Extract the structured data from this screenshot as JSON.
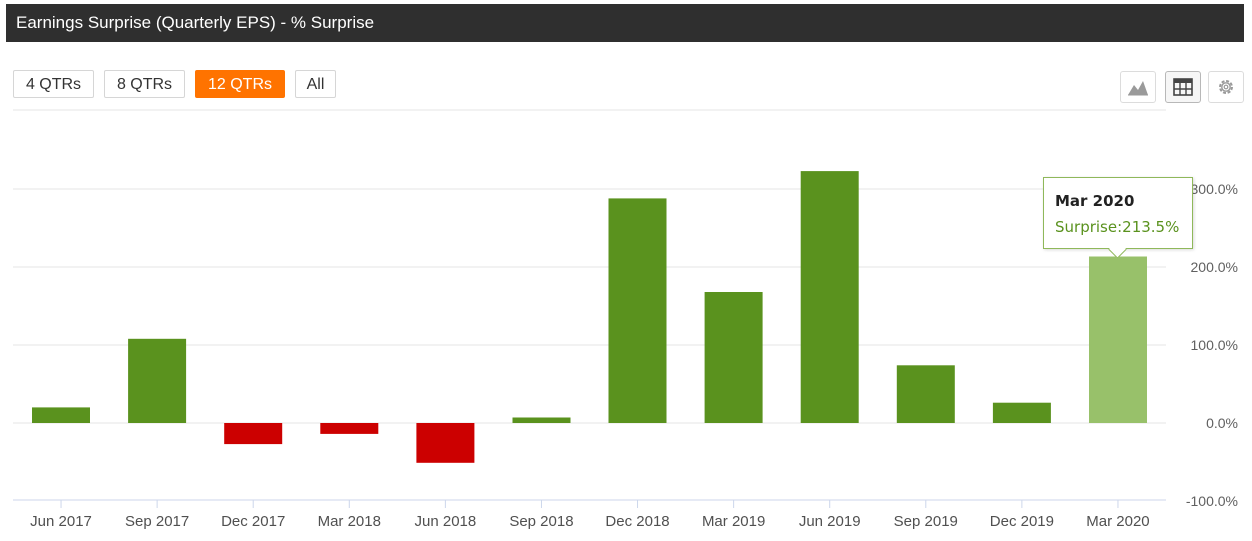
{
  "header": {
    "title": "Earnings Surprise (Quarterly EPS) - % Surprise"
  },
  "range_buttons": [
    {
      "label": "4 QTRs",
      "active": false
    },
    {
      "label": "8 QTRs",
      "active": false
    },
    {
      "label": "12 QTRs",
      "active": true
    },
    {
      "label": "All",
      "active": false
    }
  ],
  "toolbar": {
    "chart_view_icon": "area-chart-icon",
    "table_view_icon": "table-icon",
    "settings_icon": "gear-icon"
  },
  "colors": {
    "positive": "#5a921e",
    "negative": "#cc0000",
    "highlight": "#98c16a",
    "accent": "#ff7300"
  },
  "tooltip": {
    "title": "Mar 2020",
    "label": "Surprise:",
    "value": "213.5%"
  },
  "chart_data": {
    "type": "bar",
    "title": "Earnings Surprise (Quarterly EPS) - % Surprise",
    "xlabel": "",
    "ylabel": "",
    "categories": [
      "Jun 2017",
      "Sep 2017",
      "Dec 2017",
      "Mar 2018",
      "Jun 2018",
      "Sep 2018",
      "Dec 2018",
      "Mar 2019",
      "Jun 2019",
      "Sep 2019",
      "Dec 2019",
      "Mar 2020"
    ],
    "values": [
      20,
      108,
      -27,
      -14,
      -51,
      7,
      288,
      168,
      323,
      74,
      26,
      213.5
    ],
    "highlighted_index": 11,
    "ylim": [
      -100,
      400
    ],
    "yticks": [
      -100,
      0,
      100,
      200,
      300
    ],
    "ytick_labels": [
      "-100.0%",
      "0.0%",
      "100.0%",
      "200.0%",
      "300.0%"
    ],
    "grid": true,
    "y_axis_side": "right"
  }
}
